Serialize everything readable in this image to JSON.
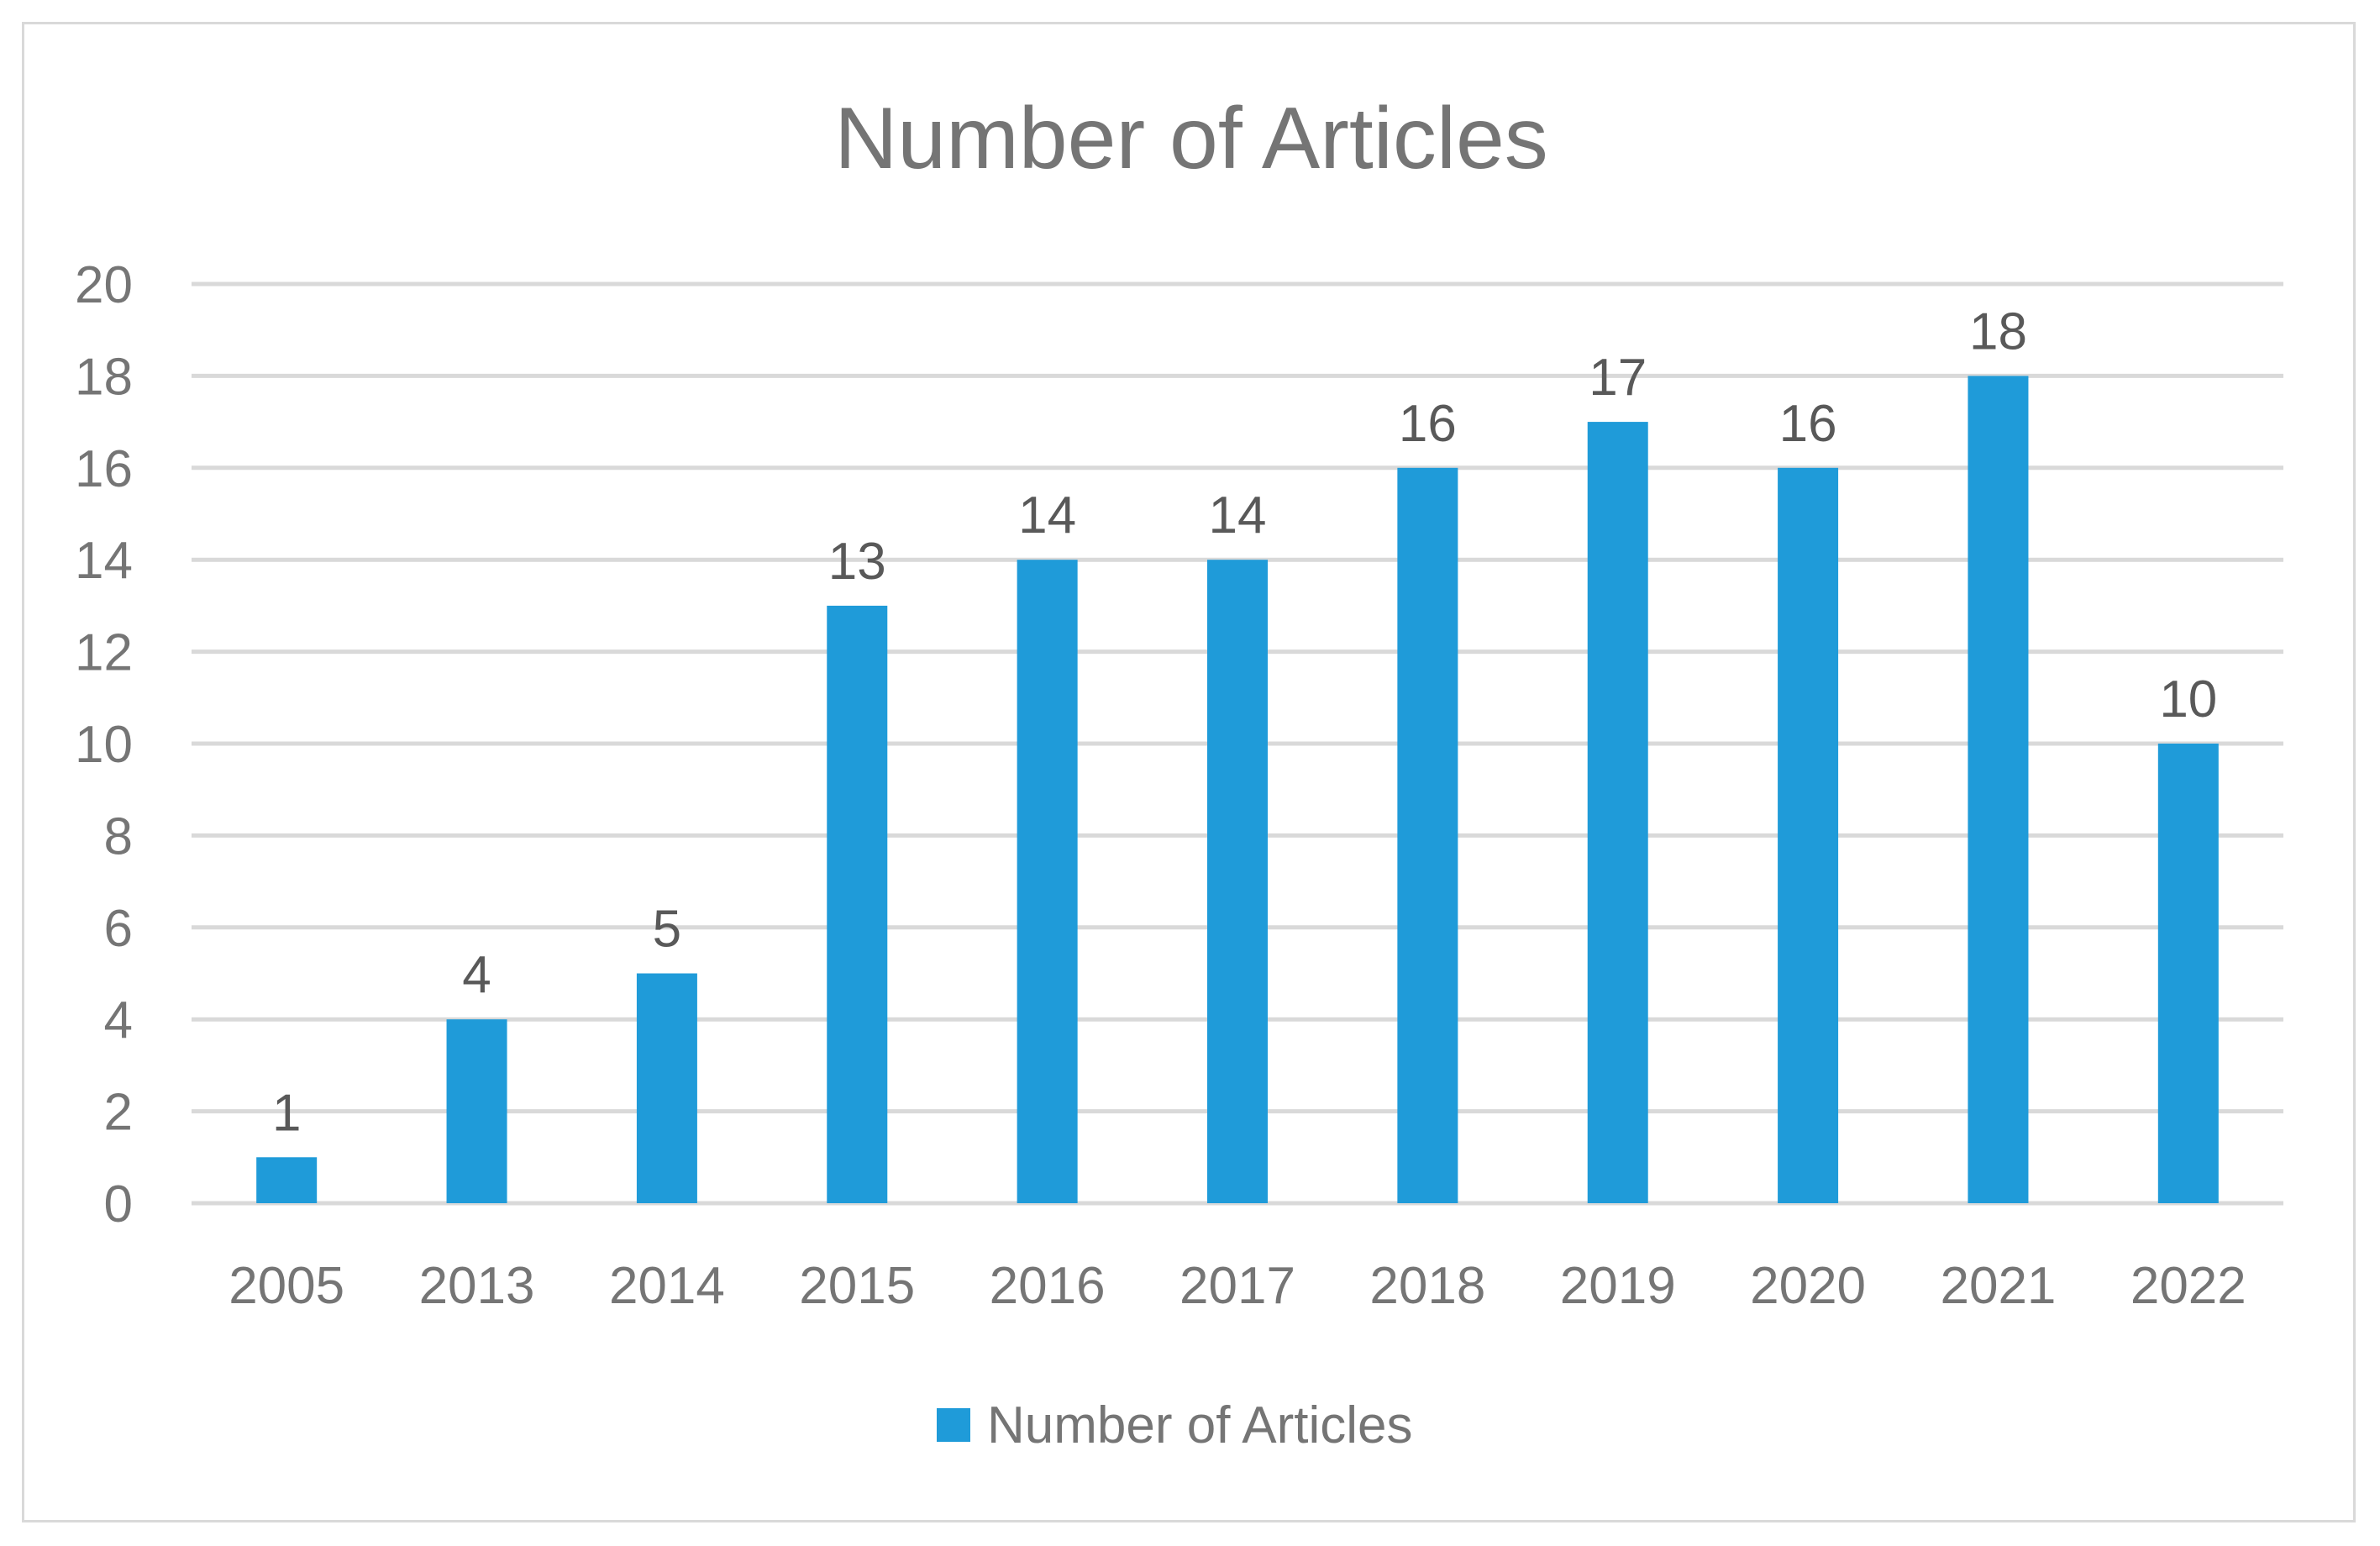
{
  "chart_data": {
    "type": "bar",
    "title": "Number of Articles",
    "categories": [
      "2005",
      "2013",
      "2014",
      "2015",
      "2016",
      "2017",
      "2018",
      "2019",
      "2020",
      "2021",
      "2022"
    ],
    "series": [
      {
        "name": "Number of Articles",
        "values": [
          1,
          4,
          5,
          13,
          14,
          14,
          16,
          17,
          16,
          18,
          10
        ]
      }
    ],
    "ylim": [
      0,
      20
    ],
    "yticks": [
      0,
      2,
      4,
      6,
      8,
      10,
      12,
      14,
      16,
      18,
      20
    ],
    "grid": true,
    "data_labels": true,
    "legend_position": "bottom",
    "colors": {
      "bar": "#1f9bd9",
      "grid": "#d9d9d9",
      "text": "#757575",
      "label": "#595959",
      "frame": "#d9d9d9"
    }
  }
}
